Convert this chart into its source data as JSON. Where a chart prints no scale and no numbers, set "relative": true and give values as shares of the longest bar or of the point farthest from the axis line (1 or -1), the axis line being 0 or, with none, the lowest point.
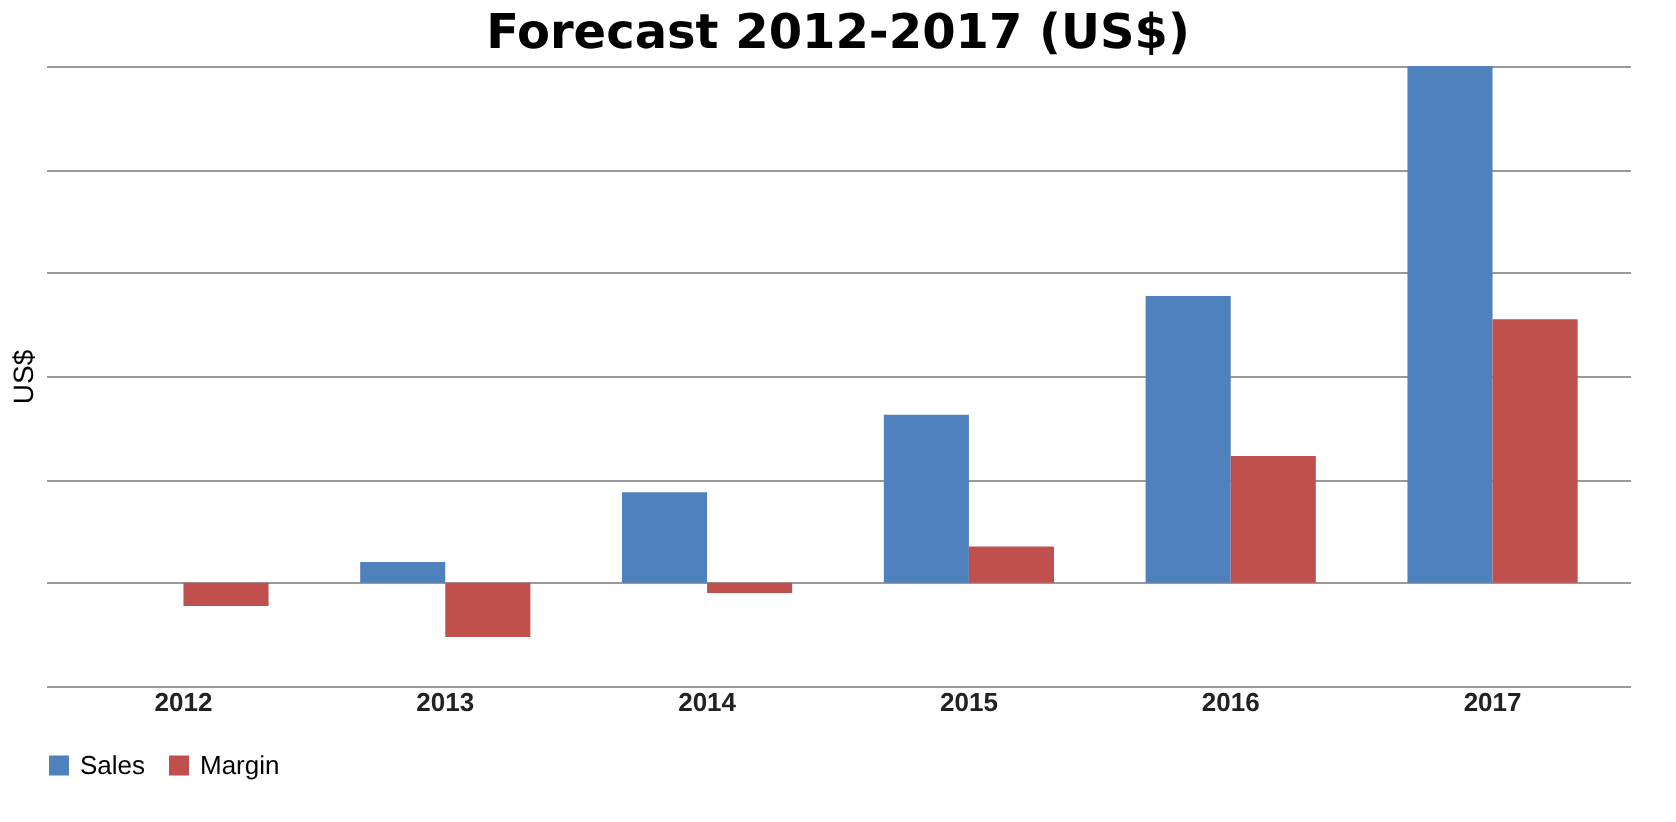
{
  "chart_data": {
    "type": "bar",
    "title": "Forecast 2012-2017 (US$)",
    "ylabel": "US$",
    "relative": true,
    "categories": [
      "2012",
      "2013",
      "2014",
      "2015",
      "2016",
      "2017"
    ],
    "series": [
      {
        "name": "Sales",
        "color": "#4f81bd",
        "values": [
          0,
          0.04,
          0.175,
          0.325,
          0.555,
          1
        ]
      },
      {
        "name": "Margin",
        "color": "#c0504d",
        "values": [
          -0.045,
          -0.105,
          -0.02,
          0.07,
          0.245,
          0.51
        ]
      }
    ],
    "grid": "y",
    "legend": "bottom"
  }
}
